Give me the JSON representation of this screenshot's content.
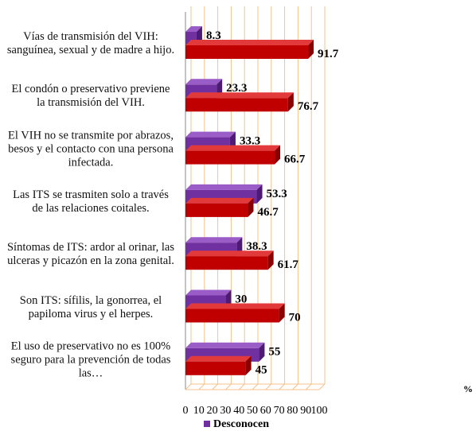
{
  "chart_data": {
    "type": "bar3d_horizontal",
    "categories": [
      "Vías de transmisión del VIH: sanguínea, sexual y de madre a hijo.",
      "El condón o preservativo previene la transmisión del VIH.",
      "El VIH no se transmite por abrazos, besos y el contacto con una persona infectada.",
      "Las ITS se trasmiten solo a través de las relaciones coitales.",
      "Síntomas de ITS: ardor al orinar, las ulceras y picazón en la zona genital.",
      "Son ITS: sífilis, la gonorrea, el papiloma virus y el herpes.",
      "El uso de preservativo no es 100% seguro  para la prevención de todas  las…"
    ],
    "series": [
      {
        "name": "Desconocen",
        "color": "#7030a0",
        "values": [
          8.3,
          23.3,
          33.3,
          53.3,
          38.3,
          30,
          55
        ]
      },
      {
        "color": "#c00000",
        "values": [
          91.7,
          76.7,
          66.7,
          46.7,
          61.7,
          70,
          45
        ]
      }
    ],
    "xlim": [
      0,
      100
    ],
    "xticks": [
      0,
      10,
      20,
      30,
      40,
      50,
      60,
      70,
      80,
      90,
      100
    ],
    "grid": true,
    "legend": "bottom",
    "annotation": "%"
  }
}
